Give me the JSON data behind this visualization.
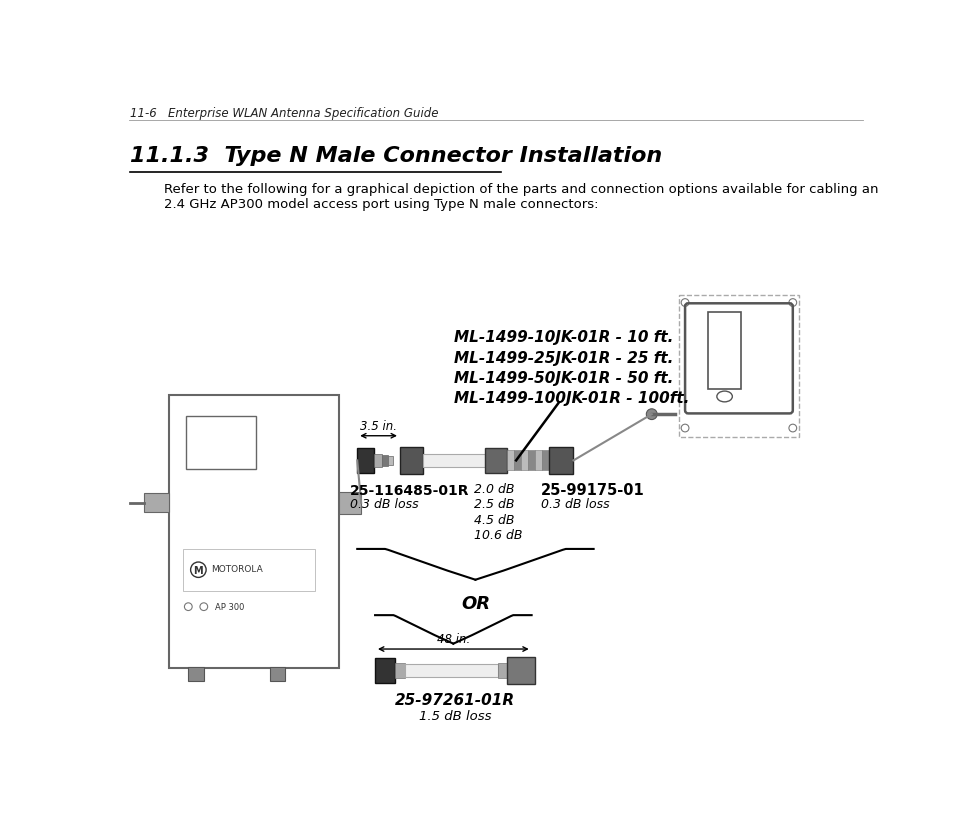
{
  "header": "11-6   Enterprise WLAN Antenna Specification Guide",
  "section_title": "11.1.3  Type N Male Connector Installation",
  "body_text_line1": "Refer to the following for a graphical depiction of the parts and connection options available for cabling an",
  "body_text_line2": "2.4 GHz AP300 model access port using Type N male connectors:",
  "cable_labels": [
    "ML-1499-10JK-01R - 10 ft.",
    "ML-1499-25JK-01R - 25 ft.",
    "ML-1499-50JK-01R - 50 ft.",
    "ML-1499-100JK-01R - 100ft."
  ],
  "loss_values": [
    "2.0 dB",
    "2.5 dB",
    "4.5 dB",
    "10.6 dB"
  ],
  "part1_name": "25-116485-01R",
  "part1_loss": "0.3 dB loss",
  "part2_name": "25-99175-01",
  "part2_loss": "0.3 dB loss",
  "or_text": "OR",
  "dim1_text": "3.5 in.",
  "dim2_text": "48 in.",
  "part3_name": "25-97261-01R",
  "part3_loss": "1.5 dB loss",
  "ap_label": "AP 300",
  "bg_color": "#ffffff",
  "text_color": "#000000"
}
